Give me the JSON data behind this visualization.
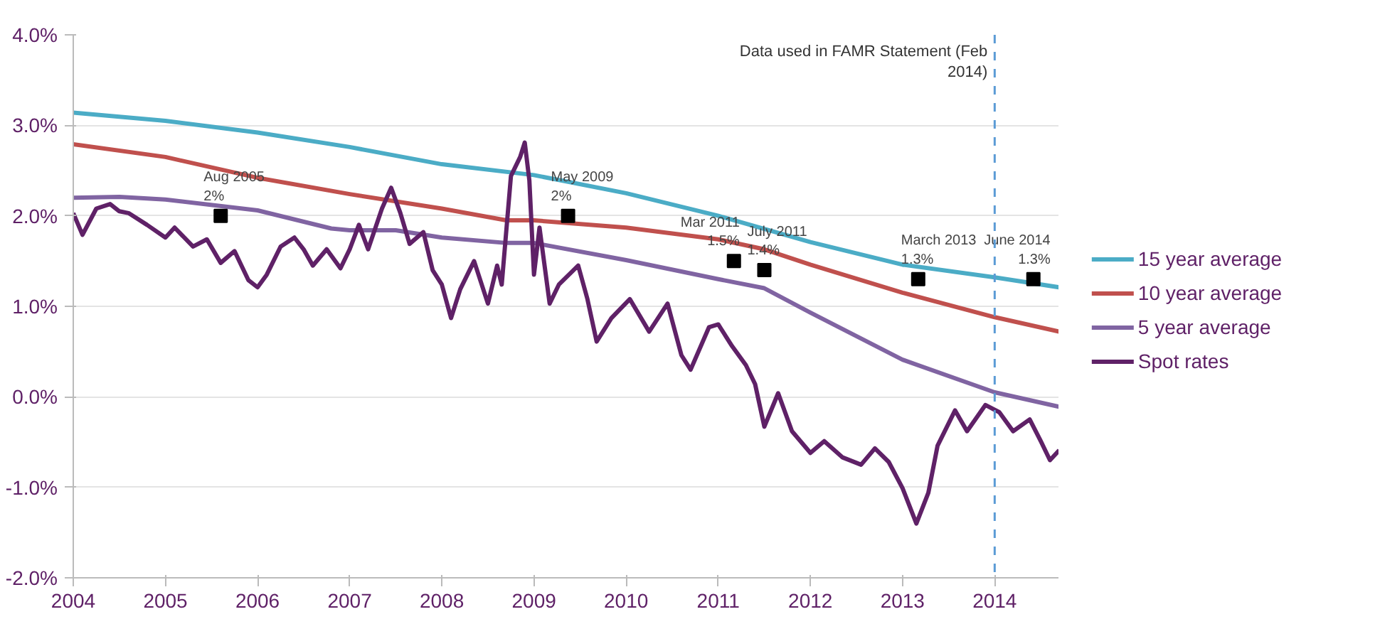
{
  "chart_data": {
    "type": "line",
    "xlim": [
      2004,
      2014.7
    ],
    "xticks": [
      2004,
      2005,
      2006,
      2007,
      2008,
      2009,
      2010,
      2011,
      2012,
      2013,
      2014
    ],
    "ylim": [
      -2,
      4
    ],
    "yticks": [
      {
        "value": -2,
        "label": "-2.0%"
      },
      {
        "value": -1,
        "label": "-1.0%"
      },
      {
        "value": 0,
        "label": "0.0%"
      },
      {
        "value": 1,
        "label": "1.0%"
      },
      {
        "value": 2,
        "label": "2.0%"
      },
      {
        "value": 3,
        "label": "3.0%"
      },
      {
        "value": 4,
        "label": "4.0%"
      }
    ],
    "grid": "y",
    "legend": "right",
    "line_style": "solid",
    "marker": "none",
    "series": [
      {
        "name": "15 year average",
        "color": "#4bacc6",
        "x": [
          2004,
          2005,
          2006,
          2007,
          2008,
          2009,
          2010,
          2011,
          2012,
          2013,
          2014,
          2014.7
        ],
        "values": [
          3.14,
          3.05,
          2.92,
          2.76,
          2.57,
          2.45,
          2.25,
          2.0,
          1.71,
          1.46,
          1.32,
          1.21
        ]
      },
      {
        "name": "10 year average",
        "color": "#c0504d",
        "x": [
          2004,
          2005,
          2006,
          2007,
          2008,
          2008.7,
          2009,
          2010,
          2011,
          2011.5,
          2012,
          2013,
          2014,
          2014.7
        ],
        "values": [
          2.79,
          2.65,
          2.42,
          2.24,
          2.08,
          1.95,
          1.95,
          1.87,
          1.74,
          1.63,
          1.46,
          1.15,
          0.88,
          0.72
        ]
      },
      {
        "name": "5 year average",
        "color": "#8064a2",
        "x": [
          2004,
          2004.5,
          2005,
          2006,
          2006.8,
          2007,
          2007.5,
          2008,
          2008.7,
          2009,
          2010,
          2011,
          2011.5,
          2012,
          2013,
          2014,
          2014.7
        ],
        "values": [
          2.2,
          2.21,
          2.18,
          2.06,
          1.86,
          1.84,
          1.84,
          1.76,
          1.7,
          1.7,
          1.51,
          1.3,
          1.2,
          0.93,
          0.41,
          0.05,
          -0.11
        ]
      },
      {
        "name": "Spot rates",
        "color": "#5f2167",
        "x": [
          2004,
          2004.1,
          2004.25,
          2004.4,
          2004.5,
          2004.6,
          2004.8,
          2005,
          2005.1,
          2005.3,
          2005.45,
          2005.6,
          2005.75,
          2005.9,
          2006,
          2006.1,
          2006.25,
          2006.4,
          2006.5,
          2006.6,
          2006.75,
          2006.9,
          2007,
          2007.1,
          2007.2,
          2007.35,
          2007.45,
          2007.55,
          2007.65,
          2007.8,
          2007.9,
          2008,
          2008.1,
          2008.2,
          2008.35,
          2008.5,
          2008.6,
          2008.65,
          2008.75,
          2008.85,
          2008.9,
          2008.95,
          2009,
          2009.06,
          2009.17,
          2009.27,
          2009.48,
          2009.58,
          2009.68,
          2009.84,
          2010.04,
          2010.25,
          2010.45,
          2010.6,
          2010.7,
          2010.9,
          2011,
          2011.15,
          2011.3,
          2011.4,
          2011.5,
          2011.65,
          2011.8,
          2012,
          2012.15,
          2012.35,
          2012.55,
          2012.7,
          2012.85,
          2013,
          2013.15,
          2013.28,
          2013.38,
          2013.57,
          2013.7,
          2013.9,
          2014.05,
          2014.2,
          2014.38,
          2014.5,
          2014.6,
          2014.7
        ],
        "values": [
          2.03,
          1.79,
          2.08,
          2.13,
          2.05,
          2.03,
          1.9,
          1.76,
          1.87,
          1.66,
          1.74,
          1.48,
          1.61,
          1.29,
          1.21,
          1.35,
          1.66,
          1.76,
          1.63,
          1.45,
          1.63,
          1.42,
          1.63,
          1.9,
          1.63,
          2.08,
          2.31,
          2.03,
          1.69,
          1.82,
          1.4,
          1.24,
          0.87,
          1.19,
          1.5,
          1.03,
          1.45,
          1.24,
          2.44,
          2.65,
          2.81,
          2.39,
          1.35,
          1.87,
          1.03,
          1.24,
          1.45,
          1.08,
          0.61,
          0.87,
          1.08,
          0.72,
          1.03,
          0.46,
          0.3,
          0.77,
          0.8,
          0.56,
          0.35,
          0.14,
          -0.33,
          0.04,
          -0.38,
          -0.62,
          -0.49,
          -0.67,
          -0.75,
          -0.57,
          -0.72,
          -1.01,
          -1.4,
          -1.06,
          -0.54,
          -0.15,
          -0.38,
          -0.09,
          -0.17,
          -0.38,
          -0.25,
          -0.49,
          -0.7,
          -0.59
        ]
      },
      {
        "type": "scatter",
        "marker": "square",
        "color": "#000000",
        "x": [
          2005.6,
          2009.37,
          2011.17,
          2011.5,
          2013.17,
          2014.42
        ],
        "values": [
          2.0,
          2.0,
          1.5,
          1.4,
          1.3,
          1.3
        ]
      }
    ],
    "annotations": [
      {
        "text": "Aug 2005\n2%",
        "x": 2005.6,
        "y": 2.0
      },
      {
        "text": "May 2009\n2%",
        "x": 2009.37,
        "y": 2.0
      },
      {
        "text": "Mar 2011\n1.5%",
        "x": 2011.17,
        "y": 1.5
      },
      {
        "text": "July 2011\n1.4%",
        "x": 2011.5,
        "y": 1.4
      },
      {
        "text": "March 2013\n1.3%",
        "x": 2013.17,
        "y": 1.3
      },
      {
        "text": "June 2014\n1.3%",
        "x": 2014.42,
        "y": 1.3
      }
    ],
    "ref_lines": [
      {
        "axis": "x",
        "value": 2014,
        "label": "Data used in FAMR Statement (Feb\n2014)",
        "color": "#5b9bd5",
        "line_style": "dashed"
      }
    ]
  }
}
